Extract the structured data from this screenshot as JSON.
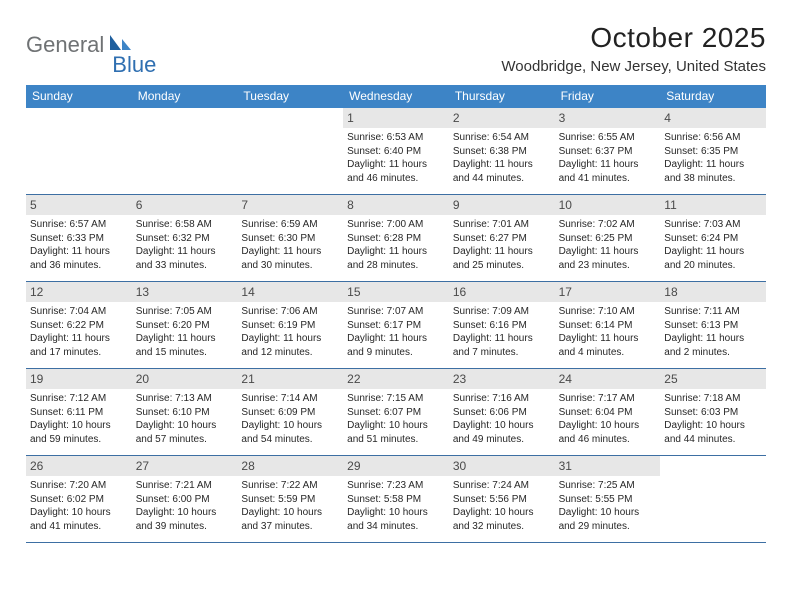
{
  "brand": {
    "general": "General",
    "blue": "Blue"
  },
  "title": {
    "month": "October 2025",
    "location": "Woodbridge, New Jersey, United States"
  },
  "weekdays": [
    "Sunday",
    "Monday",
    "Tuesday",
    "Wednesday",
    "Thursday",
    "Friday",
    "Saturday"
  ],
  "colors": {
    "header_bg": "#3d84c6",
    "header_text": "#ffffff",
    "daynum_bg": "#e7e7e7",
    "rule": "#3d6fa3",
    "logo_gray": "#6f7274",
    "logo_blue": "#2f6fb1"
  },
  "weeks": [
    [
      null,
      null,
      null,
      {
        "n": "1",
        "sr": "6:53 AM",
        "ss": "6:40 PM",
        "dl": "11 hours and 46 minutes."
      },
      {
        "n": "2",
        "sr": "6:54 AM",
        "ss": "6:38 PM",
        "dl": "11 hours and 44 minutes."
      },
      {
        "n": "3",
        "sr": "6:55 AM",
        "ss": "6:37 PM",
        "dl": "11 hours and 41 minutes."
      },
      {
        "n": "4",
        "sr": "6:56 AM",
        "ss": "6:35 PM",
        "dl": "11 hours and 38 minutes."
      }
    ],
    [
      {
        "n": "5",
        "sr": "6:57 AM",
        "ss": "6:33 PM",
        "dl": "11 hours and 36 minutes."
      },
      {
        "n": "6",
        "sr": "6:58 AM",
        "ss": "6:32 PM",
        "dl": "11 hours and 33 minutes."
      },
      {
        "n": "7",
        "sr": "6:59 AM",
        "ss": "6:30 PM",
        "dl": "11 hours and 30 minutes."
      },
      {
        "n": "8",
        "sr": "7:00 AM",
        "ss": "6:28 PM",
        "dl": "11 hours and 28 minutes."
      },
      {
        "n": "9",
        "sr": "7:01 AM",
        "ss": "6:27 PM",
        "dl": "11 hours and 25 minutes."
      },
      {
        "n": "10",
        "sr": "7:02 AM",
        "ss": "6:25 PM",
        "dl": "11 hours and 23 minutes."
      },
      {
        "n": "11",
        "sr": "7:03 AM",
        "ss": "6:24 PM",
        "dl": "11 hours and 20 minutes."
      }
    ],
    [
      {
        "n": "12",
        "sr": "7:04 AM",
        "ss": "6:22 PM",
        "dl": "11 hours and 17 minutes."
      },
      {
        "n": "13",
        "sr": "7:05 AM",
        "ss": "6:20 PM",
        "dl": "11 hours and 15 minutes."
      },
      {
        "n": "14",
        "sr": "7:06 AM",
        "ss": "6:19 PM",
        "dl": "11 hours and 12 minutes."
      },
      {
        "n": "15",
        "sr": "7:07 AM",
        "ss": "6:17 PM",
        "dl": "11 hours and 9 minutes."
      },
      {
        "n": "16",
        "sr": "7:09 AM",
        "ss": "6:16 PM",
        "dl": "11 hours and 7 minutes."
      },
      {
        "n": "17",
        "sr": "7:10 AM",
        "ss": "6:14 PM",
        "dl": "11 hours and 4 minutes."
      },
      {
        "n": "18",
        "sr": "7:11 AM",
        "ss": "6:13 PM",
        "dl": "11 hours and 2 minutes."
      }
    ],
    [
      {
        "n": "19",
        "sr": "7:12 AM",
        "ss": "6:11 PM",
        "dl": "10 hours and 59 minutes."
      },
      {
        "n": "20",
        "sr": "7:13 AM",
        "ss": "6:10 PM",
        "dl": "10 hours and 57 minutes."
      },
      {
        "n": "21",
        "sr": "7:14 AM",
        "ss": "6:09 PM",
        "dl": "10 hours and 54 minutes."
      },
      {
        "n": "22",
        "sr": "7:15 AM",
        "ss": "6:07 PM",
        "dl": "10 hours and 51 minutes."
      },
      {
        "n": "23",
        "sr": "7:16 AM",
        "ss": "6:06 PM",
        "dl": "10 hours and 49 minutes."
      },
      {
        "n": "24",
        "sr": "7:17 AM",
        "ss": "6:04 PM",
        "dl": "10 hours and 46 minutes."
      },
      {
        "n": "25",
        "sr": "7:18 AM",
        "ss": "6:03 PM",
        "dl": "10 hours and 44 minutes."
      }
    ],
    [
      {
        "n": "26",
        "sr": "7:20 AM",
        "ss": "6:02 PM",
        "dl": "10 hours and 41 minutes."
      },
      {
        "n": "27",
        "sr": "7:21 AM",
        "ss": "6:00 PM",
        "dl": "10 hours and 39 minutes."
      },
      {
        "n": "28",
        "sr": "7:22 AM",
        "ss": "5:59 PM",
        "dl": "10 hours and 37 minutes."
      },
      {
        "n": "29",
        "sr": "7:23 AM",
        "ss": "5:58 PM",
        "dl": "10 hours and 34 minutes."
      },
      {
        "n": "30",
        "sr": "7:24 AM",
        "ss": "5:56 PM",
        "dl": "10 hours and 32 minutes."
      },
      {
        "n": "31",
        "sr": "7:25 AM",
        "ss": "5:55 PM",
        "dl": "10 hours and 29 minutes."
      },
      null
    ]
  ],
  "labels": {
    "sunrise": "Sunrise:",
    "sunset": "Sunset:",
    "daylight": "Daylight:"
  }
}
